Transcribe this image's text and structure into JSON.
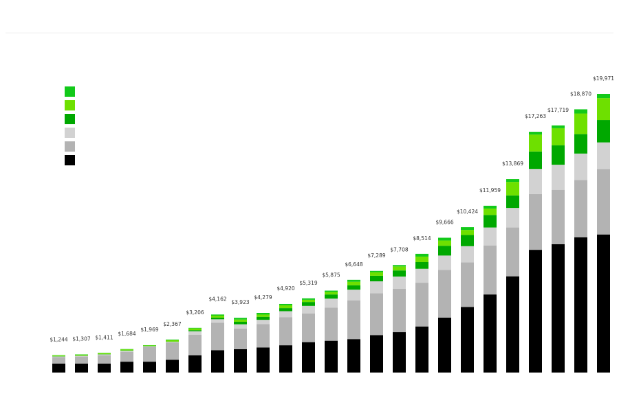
{
  "chart_data": {
    "type": "stacked-bar",
    "series": [
      {
        "color": "#000000",
        "values": [
          640,
          640,
          640,
          780,
          780,
          920,
          1240,
          1600,
          1680,
          1800,
          1960,
          2180,
          2280,
          2400,
          2680,
          2900,
          3300,
          3940,
          4700,
          5600,
          6900,
          8800,
          9200,
          9700,
          9900
        ]
      },
      {
        "color": "#b3b3b3",
        "values": [
          470,
          510,
          600,
          700,
          1060,
          1220,
          1480,
          1980,
          1480,
          1680,
          2000,
          2060,
          2380,
          2780,
          3000,
          3100,
          3140,
          3420,
          3200,
          3500,
          3500,
          4000,
          3900,
          4100,
          4700
        ]
      },
      {
        "color": "#d2d2d2",
        "values": [
          40,
          50,
          60,
          80,
          40,
          60,
          240,
          240,
          300,
          300,
          440,
          540,
          640,
          760,
          860,
          880,
          1000,
          1030,
          1160,
          1300,
          1400,
          1800,
          1800,
          1900,
          1900
        ]
      },
      {
        "color": "#00a800",
        "values": [
          20,
          20,
          20,
          30,
          20,
          20,
          80,
          120,
          180,
          220,
          220,
          280,
          300,
          320,
          400,
          440,
          480,
          700,
          800,
          900,
          900,
          1250,
          1400,
          1400,
          1600
        ]
      },
      {
        "color": "#6ee000",
        "values": [
          54,
          67,
          71,
          74,
          49,
          107,
          126,
          142,
          163,
          159,
          200,
          159,
          175,
          248,
          249,
          288,
          394,
          376,
          364,
          459,
          969,
          1213,
          1219,
          1470,
          1571
        ]
      },
      {
        "color": "#12c91a",
        "values": [
          20,
          20,
          20,
          20,
          20,
          40,
          40,
          80,
          120,
          120,
          100,
          100,
          100,
          140,
          100,
          100,
          200,
          200,
          200,
          200,
          200,
          200,
          200,
          300,
          300
        ]
      }
    ],
    "totals": [
      1244,
      1307,
      1411,
      1684,
      1969,
      2367,
      3206,
      4162,
      3923,
      4279,
      4920,
      5319,
      5875,
      6648,
      7289,
      7708,
      8514,
      9666,
      10424,
      11959,
      13869,
      17263,
      17719,
      18870,
      19971
    ],
    "total_labels": [
      "$1,244",
      "$1,307",
      "$1,411",
      "$1,684",
      "$1,969",
      "$2,367",
      "$3,206",
      "$4,162",
      "$3,923",
      "$4,279",
      "$4,920",
      "$5,319",
      "$5,875",
      "$6,648",
      "$7,289",
      "$7,708",
      "$8,514",
      "$9,666",
      "$10,424",
      "$11,959",
      "$13,869",
      "$17,263",
      "$17,719",
      "$18,870",
      "$19,971"
    ]
  }
}
